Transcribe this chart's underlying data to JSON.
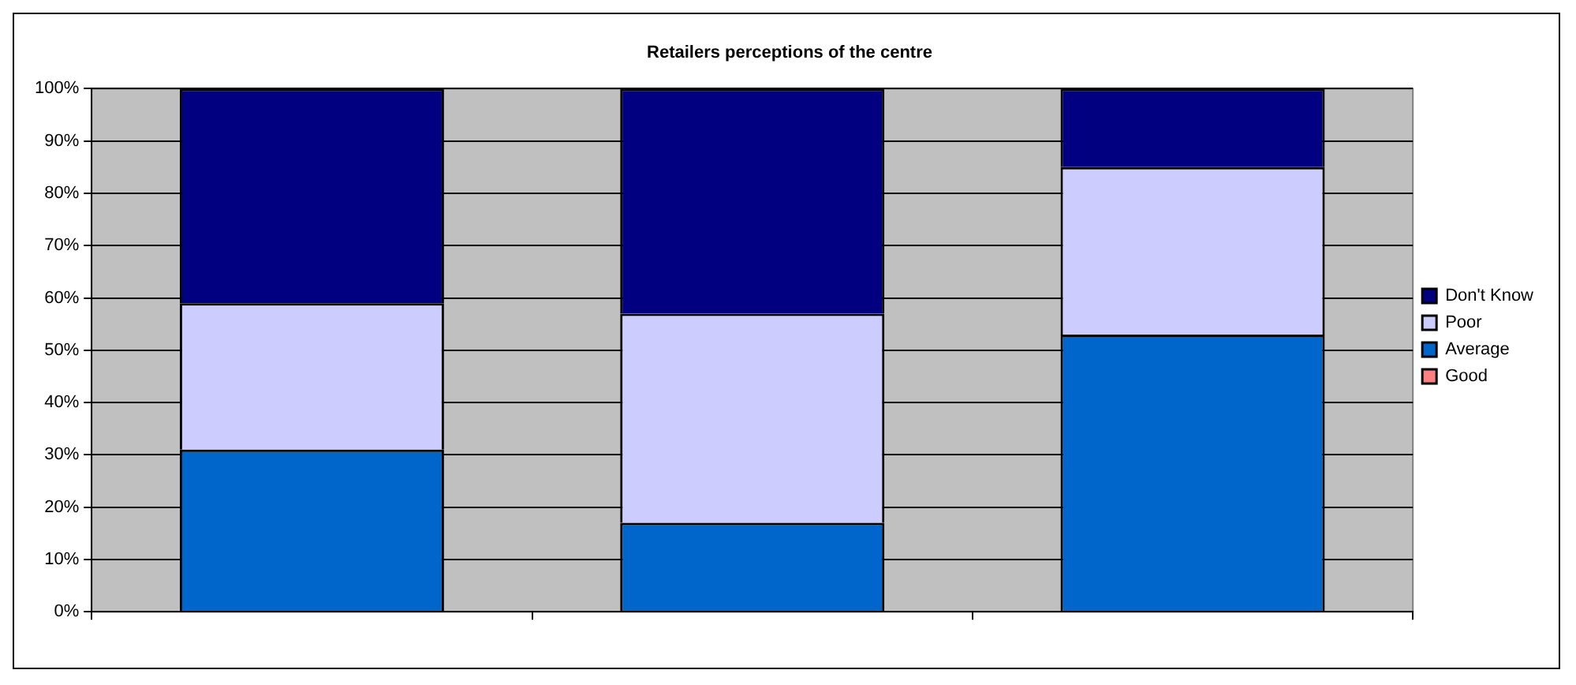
{
  "chart_data": {
    "type": "bar",
    "title": "Retailers perceptions of the centre",
    "stacked": true,
    "categories": [
      null,
      null,
      null
    ],
    "series": [
      {
        "name": "Good",
        "color": "#ff8080",
        "values": [
          0,
          0,
          0
        ]
      },
      {
        "name": "Average",
        "color": "#0066cc",
        "values": [
          31,
          17,
          53
        ]
      },
      {
        "name": "Poor",
        "color": "#ccccff",
        "values": [
          28,
          40,
          32
        ]
      },
      {
        "name": "Don't Know",
        "color": "#000080",
        "values": [
          41,
          43,
          15
        ]
      }
    ],
    "ylim": [
      0,
      100
    ],
    "yticks": [
      {
        "value": 0,
        "label": "0%"
      },
      {
        "value": 10,
        "label": "10%"
      },
      {
        "value": 20,
        "label": "20%"
      },
      {
        "value": 30,
        "label": "30%"
      },
      {
        "value": 40,
        "label": "40%"
      },
      {
        "value": 50,
        "label": "50%"
      },
      {
        "value": 60,
        "label": "60%"
      },
      {
        "value": 70,
        "label": "70%"
      },
      {
        "value": 80,
        "label": "80%"
      },
      {
        "value": 90,
        "label": "90%"
      },
      {
        "value": 100,
        "label": "100%"
      }
    ],
    "grid": "y",
    "legend": "right"
  }
}
